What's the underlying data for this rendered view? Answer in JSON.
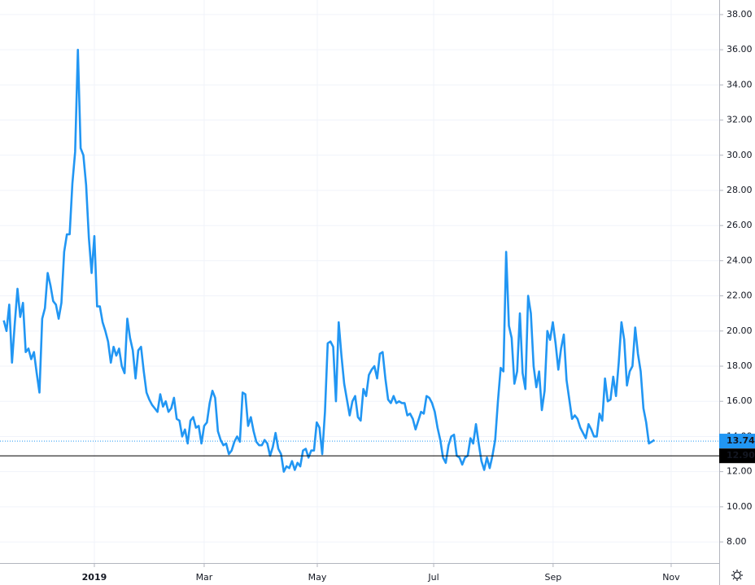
{
  "chart_data": {
    "type": "line",
    "series": [
      {
        "color": "#2196f3",
        "values": [
          20.6,
          20.0,
          21.5,
          18.2,
          20.4,
          22.4,
          20.8,
          21.6,
          18.8,
          19.0,
          18.4,
          18.8,
          17.6,
          16.5,
          20.7,
          21.3,
          23.3,
          22.6,
          21.7,
          21.5,
          20.7,
          21.6,
          24.5,
          25.5,
          25.5,
          28.4,
          30.2,
          36.0,
          30.4,
          30.0,
          28.3,
          25.3,
          23.3,
          25.4,
          21.4,
          21.4,
          20.5,
          20.0,
          19.4,
          18.2,
          19.1,
          18.6,
          19.0,
          18.0,
          17.6,
          20.7,
          19.6,
          18.9,
          17.3,
          18.9,
          19.1,
          17.7,
          16.5,
          16.1,
          15.8,
          15.6,
          15.4,
          16.4,
          15.7,
          16.0,
          15.4,
          15.6,
          16.2,
          15.0,
          14.9,
          14.0,
          14.4,
          13.6,
          14.9,
          15.1,
          14.5,
          14.6,
          13.6,
          14.6,
          14.8,
          15.9,
          16.6,
          16.2,
          14.3,
          13.8,
          13.5,
          13.6,
          13.0,
          13.2,
          13.7,
          14.0,
          13.7,
          16.5,
          16.4,
          14.6,
          15.1,
          14.3,
          13.7,
          13.5,
          13.5,
          13.8,
          13.6,
          12.9,
          13.4,
          14.2,
          13.3,
          13.0,
          12.0,
          12.3,
          12.2,
          12.6,
          12.1,
          12.5,
          12.3,
          13.2,
          13.3,
          12.8,
          13.2,
          13.2,
          14.8,
          14.5,
          13.0,
          15.4,
          19.3,
          19.4,
          19.1,
          16.0,
          20.5,
          18.6,
          17.0,
          16.1,
          15.2,
          16.0,
          16.3,
          15.1,
          14.9,
          16.7,
          16.3,
          17.5,
          17.8,
          18.0,
          17.3,
          18.7,
          18.8,
          17.3,
          16.1,
          15.9,
          16.3,
          15.9,
          16.0,
          15.9,
          15.9,
          15.2,
          15.3,
          15.0,
          14.4,
          14.9,
          15.4,
          15.3,
          16.3,
          16.2,
          15.9,
          15.4,
          14.5,
          13.8,
          12.8,
          12.5,
          13.5,
          14.0,
          14.1,
          12.9,
          12.8,
          12.4,
          12.8,
          12.9,
          13.9,
          13.6,
          14.7,
          13.6,
          12.6,
          12.1,
          12.8,
          12.2,
          12.9,
          13.8,
          16.0,
          17.9,
          17.7,
          24.5,
          20.3,
          19.6,
          17.0,
          17.7,
          21.0,
          17.6,
          16.7,
          22.0,
          21.0,
          18.0,
          16.8,
          17.7,
          15.5,
          16.6,
          20.0,
          19.5,
          20.5,
          19.3,
          17.8,
          19.0,
          19.8,
          17.2,
          16.1,
          15.0,
          15.2,
          15.0,
          14.5,
          14.2,
          13.9,
          14.7,
          14.4,
          14.0,
          14.0,
          15.3,
          14.9,
          17.3,
          16.0,
          16.1,
          17.4,
          16.3,
          18.2,
          20.5,
          19.5,
          16.9,
          17.7,
          18.0,
          20.2,
          18.7,
          17.7,
          15.6,
          14.8,
          13.6,
          13.7,
          13.8
        ]
      }
    ],
    "price_lines": [
      {
        "value": 13.74,
        "label": "13.74",
        "color": "#2196f3"
      },
      {
        "value": 12.9,
        "label": "12.90",
        "color": "#000000"
      }
    ],
    "xlim": [
      -1.37,
      260.6
    ],
    "xticks": [
      {
        "value": 33,
        "label": "2019"
      },
      {
        "value": 73,
        "label": "Mar"
      },
      {
        "value": 114.2,
        "label": "May"
      },
      {
        "value": 156.6,
        "label": "Jul"
      },
      {
        "value": 200.1,
        "label": "Sep"
      },
      {
        "value": 243.1,
        "label": "Nov"
      }
    ],
    "ylim": [
      6.8,
      38.83
    ],
    "yticks": [
      {
        "value": 8,
        "label": "8.00"
      },
      {
        "value": 10,
        "label": "10.00"
      },
      {
        "value": 12,
        "label": "12.00"
      },
      {
        "value": 14,
        "label": "14.00"
      },
      {
        "value": 16,
        "label": "16.00"
      },
      {
        "value": 18,
        "label": "18.00"
      },
      {
        "value": 20,
        "label": "20.00"
      },
      {
        "value": 22,
        "label": "22.00"
      },
      {
        "value": 24,
        "label": "24.00"
      },
      {
        "value": 26,
        "label": "26.00"
      },
      {
        "value": 28,
        "label": "28.00"
      },
      {
        "value": 30,
        "label": "30.00"
      },
      {
        "value": 32,
        "label": "32.00"
      },
      {
        "value": 34,
        "label": "34.00"
      },
      {
        "value": 36,
        "label": "36.00"
      },
      {
        "value": 38,
        "label": "38.00"
      }
    ],
    "grid": true
  }
}
